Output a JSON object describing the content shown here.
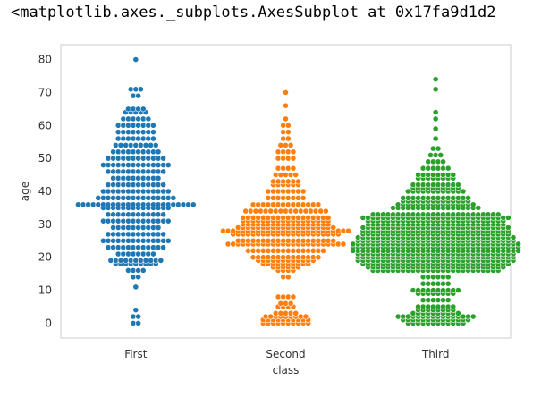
{
  "output_repr": "<matplotlib.axes._subplots.AxesSubplot at 0x17fa9d1d2",
  "chart_data": {
    "type": "swarm",
    "title": "",
    "xlabel": "class",
    "ylabel": "age",
    "ylim": [
      -4.5,
      84.5
    ],
    "yticks": [
      0,
      10,
      20,
      30,
      40,
      50,
      60,
      70,
      80
    ],
    "categories": [
      "First",
      "Second",
      "Third"
    ],
    "grid": true,
    "series": [
      {
        "category": "First",
        "color": "#1f77b4",
        "profile": [
          [
            0,
            2
          ],
          [
            2,
            2
          ],
          [
            4,
            1
          ],
          [
            11,
            1
          ],
          [
            14,
            2
          ],
          [
            16,
            4
          ],
          [
            18,
            9
          ],
          [
            19,
            11
          ],
          [
            21,
            8
          ],
          [
            23,
            12
          ],
          [
            25,
            14
          ],
          [
            27,
            12
          ],
          [
            29,
            10
          ],
          [
            31,
            14
          ],
          [
            33,
            12
          ],
          [
            35,
            14
          ],
          [
            36,
            24
          ],
          [
            38,
            16
          ],
          [
            40,
            14
          ],
          [
            42,
            12
          ],
          [
            44,
            10
          ],
          [
            46,
            12
          ],
          [
            48,
            14
          ],
          [
            50,
            12
          ],
          [
            52,
            10
          ],
          [
            54,
            9
          ],
          [
            56,
            8
          ],
          [
            58,
            8
          ],
          [
            60,
            8
          ],
          [
            62,
            6
          ],
          [
            64,
            5
          ],
          [
            65,
            4
          ],
          [
            69,
            2
          ],
          [
            71,
            3
          ],
          [
            80,
            1
          ]
        ]
      },
      {
        "category": "Second",
        "color": "#ff7f0e",
        "profile": [
          [
            0,
            10
          ],
          [
            1,
            10
          ],
          [
            2,
            9
          ],
          [
            3,
            5
          ],
          [
            5,
            4
          ],
          [
            6,
            3
          ],
          [
            8,
            4
          ],
          [
            14,
            2
          ],
          [
            16,
            4
          ],
          [
            17,
            6
          ],
          [
            18,
            10
          ],
          [
            19,
            12
          ],
          [
            20,
            14
          ],
          [
            22,
            16
          ],
          [
            24,
            24
          ],
          [
            25,
            20
          ],
          [
            27,
            22
          ],
          [
            28,
            26
          ],
          [
            29,
            20
          ],
          [
            30,
            18
          ],
          [
            31,
            18
          ],
          [
            32,
            18
          ],
          [
            34,
            17
          ],
          [
            36,
            14
          ],
          [
            38,
            8
          ],
          [
            40,
            8
          ],
          [
            42,
            6
          ],
          [
            43,
            6
          ],
          [
            45,
            5
          ],
          [
            47,
            4
          ],
          [
            50,
            4
          ],
          [
            52,
            4
          ],
          [
            54,
            3
          ],
          [
            56,
            2
          ],
          [
            58,
            2
          ],
          [
            60,
            2
          ],
          [
            62,
            1
          ],
          [
            66,
            1
          ],
          [
            70,
            1
          ]
        ]
      },
      {
        "category": "Third",
        "color": "#2ca02c",
        "profile": [
          [
            0,
            12
          ],
          [
            1,
            14
          ],
          [
            2,
            16
          ],
          [
            3,
            10
          ],
          [
            4,
            8
          ],
          [
            5,
            8
          ],
          [
            7,
            6
          ],
          [
            9,
            8
          ],
          [
            10,
            10
          ],
          [
            12,
            6
          ],
          [
            14,
            6
          ],
          [
            16,
            26
          ],
          [
            17,
            28
          ],
          [
            18,
            30
          ],
          [
            19,
            32
          ],
          [
            20,
            32
          ],
          [
            21,
            32
          ],
          [
            22,
            34
          ],
          [
            23,
            34
          ],
          [
            24,
            34
          ],
          [
            25,
            32
          ],
          [
            26,
            32
          ],
          [
            27,
            30
          ],
          [
            28,
            30
          ],
          [
            29,
            30
          ],
          [
            30,
            28
          ],
          [
            31,
            28
          ],
          [
            32,
            30
          ],
          [
            33,
            26
          ],
          [
            35,
            18
          ],
          [
            36,
            16
          ],
          [
            37,
            14
          ],
          [
            38,
            14
          ],
          [
            40,
            12
          ],
          [
            41,
            10
          ],
          [
            42,
            10
          ],
          [
            44,
            8
          ],
          [
            45,
            8
          ],
          [
            47,
            6
          ],
          [
            49,
            4
          ],
          [
            51,
            3
          ],
          [
            53,
            2
          ],
          [
            56,
            1
          ],
          [
            59,
            1
          ],
          [
            62,
            1
          ],
          [
            64,
            1
          ],
          [
            71,
            1
          ],
          [
            74,
            1
          ]
        ]
      }
    ]
  }
}
